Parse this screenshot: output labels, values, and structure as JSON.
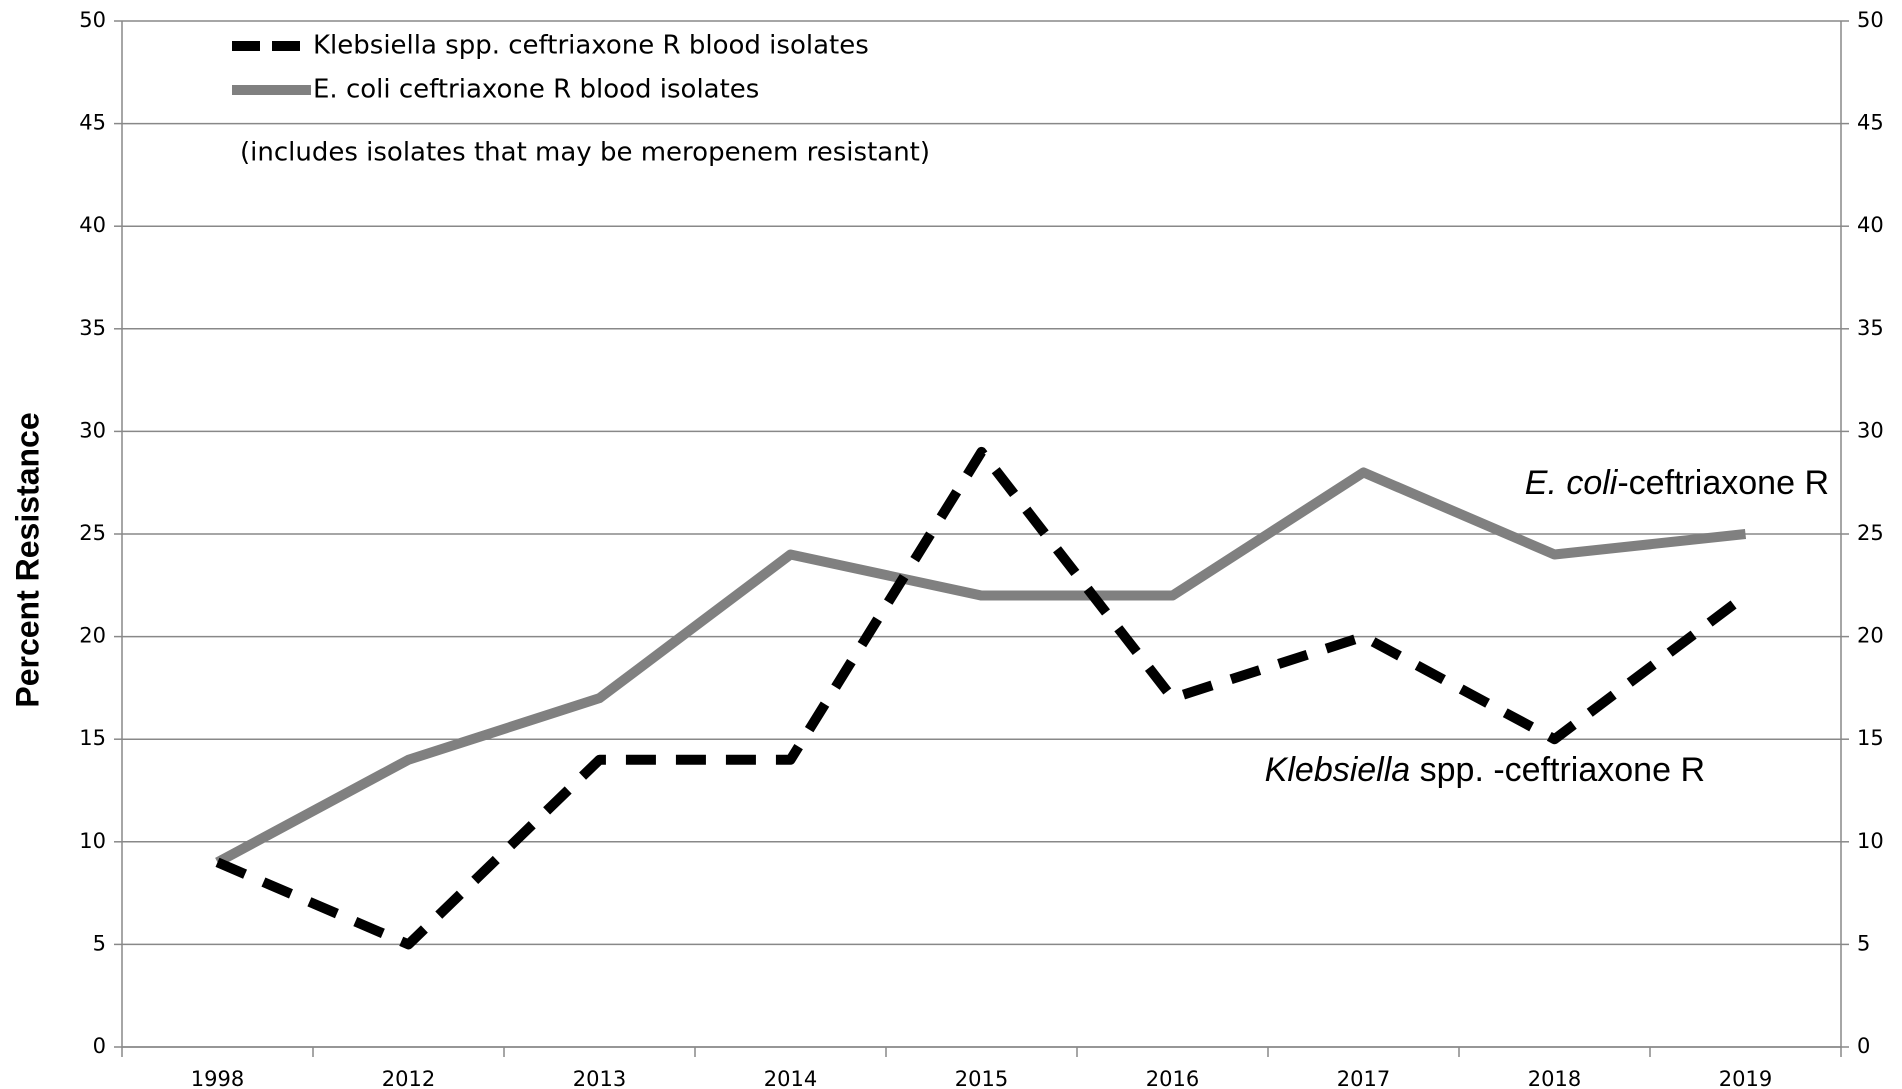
{
  "chart_data": {
    "type": "line",
    "y_label": "Percent Resistance",
    "categories": [
      "1998",
      "2012",
      "2013",
      "2014",
      "2015",
      "2016",
      "2017",
      "2018",
      "2019"
    ],
    "series": [
      {
        "name": "Klebsiella spp. ceftriaxone R blood isolates",
        "color": "#000000",
        "dashed": true,
        "values": [
          9,
          5,
          14,
          14,
          29,
          17,
          20,
          15,
          22
        ]
      },
      {
        "name": "E. coli ceftriaxone R blood isolates",
        "color": "#808080",
        "dashed": false,
        "values": [
          9,
          14,
          17,
          24,
          22,
          22,
          28,
          24,
          25
        ]
      }
    ],
    "ylim": [
      0,
      50
    ],
    "yticks": [
      0,
      5,
      10,
      15,
      20,
      25,
      30,
      35,
      40,
      45,
      50
    ],
    "y2lim": [
      0,
      50
    ],
    "y2ticks": [
      0,
      5,
      10,
      15,
      20,
      25,
      30,
      35,
      40,
      45,
      50
    ],
    "grid": true,
    "legend": "upper left",
    "note": "(includes isolates that may be meropenem resistant)",
    "annotations": [
      [
        "E. coli",
        "-ceftriaxone R"
      ],
      [
        "Klebsiella",
        " spp. -ceftriaxone R"
      ]
    ]
  }
}
